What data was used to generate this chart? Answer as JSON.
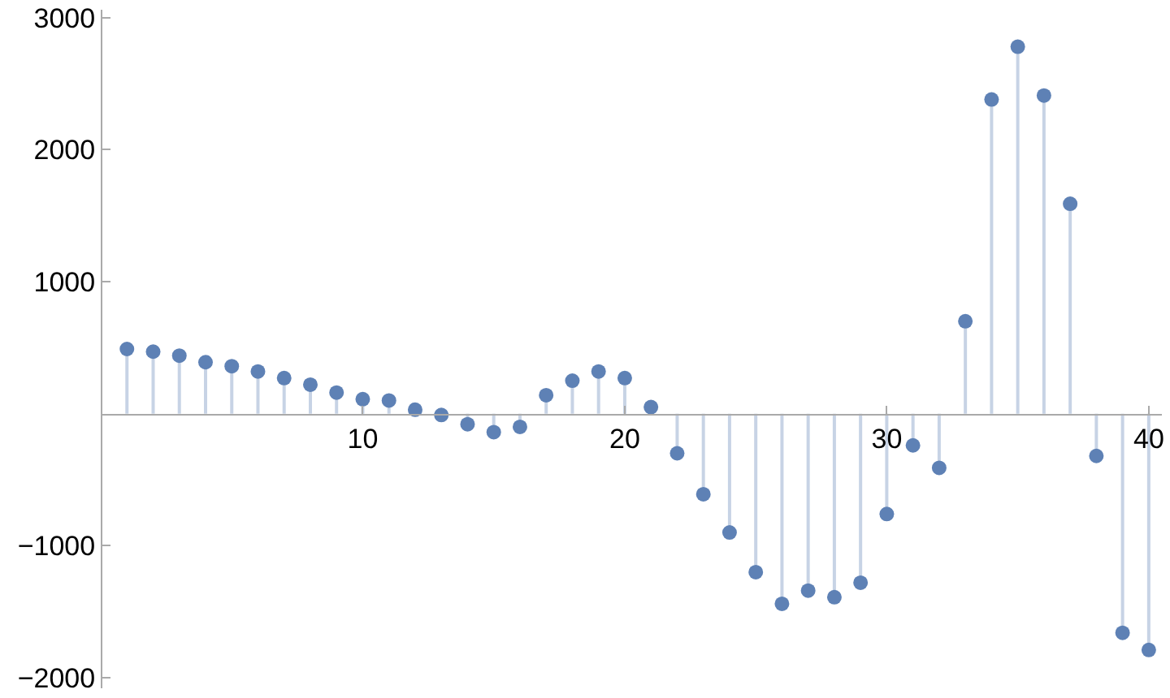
{
  "chart_data": {
    "type": "lollipop",
    "x": [
      1,
      2,
      3,
      4,
      5,
      6,
      7,
      8,
      9,
      10,
      11,
      12,
      13,
      14,
      15,
      16,
      17,
      18,
      19,
      20,
      21,
      22,
      23,
      24,
      25,
      26,
      27,
      28,
      29,
      30,
      31,
      32,
      33,
      34,
      35,
      36,
      37,
      38,
      39,
      40
    ],
    "series": [
      {
        "color": "#5e81b5",
        "values": [
          490,
          470,
          440,
          390,
          360,
          320,
          270,
          220,
          160,
          110,
          100,
          30,
          -10,
          -80,
          -140,
          -100,
          140,
          250,
          320,
          270,
          50,
          -300,
          -610,
          -900,
          -1200,
          -1440,
          -1340,
          -1390,
          -1280,
          -760,
          -240,
          -410,
          700,
          2380,
          2780,
          2410,
          1590,
          -320,
          -1660,
          -1790
        ]
      }
    ],
    "xlim": [
      0,
      40.5
    ],
    "ylim": [
      -2080,
      3060
    ],
    "xticks": [
      10,
      20,
      30,
      40
    ],
    "yticks": [
      {
        "value": -2000,
        "label": "−2000"
      },
      {
        "value": -1000,
        "label": "−1000"
      },
      1000,
      2000,
      3000
    ],
    "marker": "circle",
    "grid": false
  }
}
